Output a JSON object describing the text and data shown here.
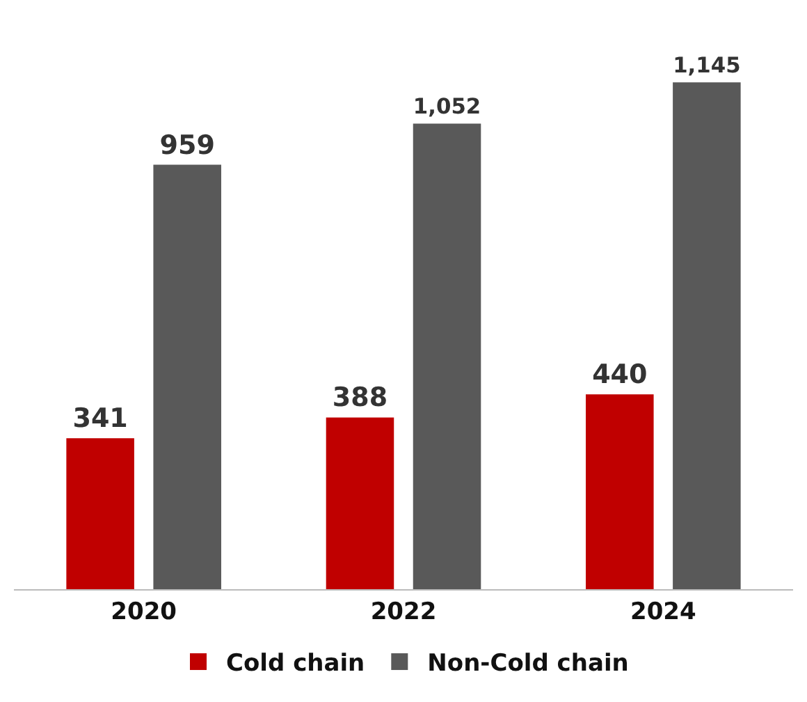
{
  "chart_data": {
    "type": "bar",
    "categories": [
      "2020",
      "2022",
      "2024"
    ],
    "series": [
      {
        "name": "Cold chain",
        "color": "#c00000",
        "values": [
          341,
          388,
          440
        ],
        "value_labels": [
          "341",
          "388",
          "440"
        ]
      },
      {
        "name": "Non-Cold chain",
        "color": "#595959",
        "values": [
          959,
          1052,
          1145
        ],
        "value_labels": [
          "959",
          "1,052",
          "1,145"
        ]
      }
    ],
    "legend": "bottom",
    "grid": false
  }
}
